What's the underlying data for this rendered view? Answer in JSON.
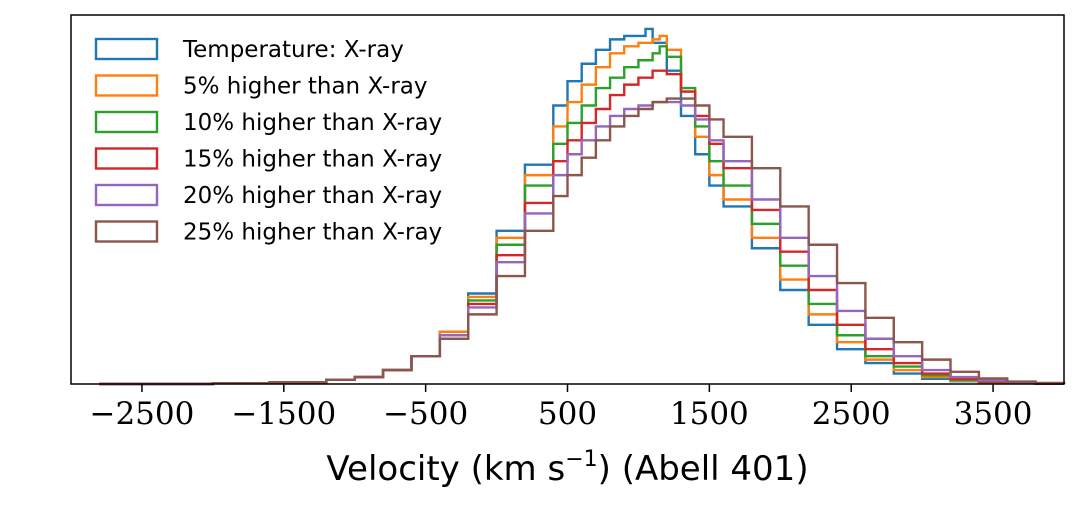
{
  "chart_data": {
    "type": "histogram",
    "xlabel": "Velocity (km s",
    "xlabel_superscript": "−1",
    "xlabel_tail": ") (Abell 401)",
    "ylabel": "",
    "xlim": [
      -3000,
      4000
    ],
    "ylim": [
      0,
      1.06
    ],
    "y_axis_visible": false,
    "grid": false,
    "legend_position": "upper-left",
    "x_ticks": [
      -2500,
      -1500,
      -500,
      500,
      1500,
      2500,
      3500
    ],
    "x_tick_labels": [
      "−2500",
      "−1500",
      "−500",
      "500",
      "1500",
      "2500",
      "3500"
    ],
    "series": [
      {
        "name": "Temperature: X-ray",
        "color": "#1f77b4",
        "x": [
          -2800,
          -2400,
          -2000,
          -1600,
          -1200,
          -1000,
          -800,
          -600,
          -400,
          -200,
          0,
          200,
          400,
          500,
          600,
          700,
          800,
          900,
          1000,
          1050,
          1100,
          1200,
          1300,
          1400,
          1500,
          1600,
          1800,
          2000,
          2200,
          2400,
          2600,
          2800,
          3000,
          3200,
          3400,
          3600,
          3800,
          4000
        ],
        "y": [
          0,
          0,
          0.002,
          0.005,
          0.012,
          0.02,
          0.04,
          0.08,
          0.15,
          0.26,
          0.44,
          0.63,
          0.8,
          0.87,
          0.92,
          0.96,
          0.99,
          1.0,
          1.0,
          1.02,
          0.98,
          0.9,
          0.77,
          0.66,
          0.57,
          0.51,
          0.39,
          0.27,
          0.17,
          0.1,
          0.06,
          0.03,
          0.015,
          0.008,
          0.004,
          0.002,
          0.001,
          0
        ]
      },
      {
        "name": "5% higher than X-ray",
        "color": "#ff7f0e",
        "x": [
          -2800,
          -2400,
          -2000,
          -1600,
          -1200,
          -1000,
          -800,
          -600,
          -400,
          -200,
          0,
          200,
          400,
          500,
          600,
          700,
          800,
          900,
          1000,
          1100,
          1150,
          1200,
          1300,
          1400,
          1500,
          1600,
          1800,
          2000,
          2200,
          2400,
          2600,
          2800,
          3000,
          3200,
          3400,
          3600,
          3800,
          4000
        ],
        "y": [
          0,
          0,
          0.002,
          0.005,
          0.012,
          0.02,
          0.04,
          0.08,
          0.15,
          0.25,
          0.42,
          0.6,
          0.74,
          0.81,
          0.86,
          0.91,
          0.95,
          0.97,
          0.98,
          0.99,
          1.0,
          0.96,
          0.84,
          0.71,
          0.6,
          0.53,
          0.42,
          0.3,
          0.2,
          0.12,
          0.07,
          0.04,
          0.02,
          0.01,
          0.005,
          0.002,
          0.001,
          0
        ]
      },
      {
        "name": "10% higher than X-ray",
        "color": "#2ca02c",
        "x": [
          -2800,
          -2400,
          -2000,
          -1600,
          -1200,
          -1000,
          -800,
          -600,
          -400,
          -200,
          0,
          200,
          400,
          500,
          600,
          700,
          800,
          900,
          1000,
          1100,
          1150,
          1200,
          1300,
          1400,
          1500,
          1600,
          1800,
          2000,
          2200,
          2400,
          2600,
          2800,
          3000,
          3200,
          3400,
          3600,
          3800,
          4000
        ],
        "y": [
          0,
          0,
          0.002,
          0.005,
          0.012,
          0.02,
          0.04,
          0.08,
          0.14,
          0.24,
          0.4,
          0.57,
          0.69,
          0.75,
          0.8,
          0.85,
          0.88,
          0.91,
          0.93,
          0.95,
          0.97,
          0.94,
          0.85,
          0.74,
          0.64,
          0.57,
          0.46,
          0.34,
          0.23,
          0.14,
          0.08,
          0.05,
          0.025,
          0.012,
          0.006,
          0.003,
          0.001,
          0
        ]
      },
      {
        "name": "15% higher than X-ray",
        "color": "#d62728",
        "x": [
          -2800,
          -2400,
          -2000,
          -1600,
          -1200,
          -1000,
          -800,
          -600,
          -400,
          -200,
          0,
          200,
          400,
          500,
          600,
          700,
          800,
          900,
          1000,
          1100,
          1200,
          1300,
          1400,
          1500,
          1600,
          1800,
          2000,
          2200,
          2400,
          2600,
          2800,
          3000,
          3200,
          3400,
          3600,
          3800,
          4000
        ],
        "y": [
          0,
          0,
          0.002,
          0.005,
          0.012,
          0.02,
          0.04,
          0.08,
          0.14,
          0.23,
          0.37,
          0.52,
          0.64,
          0.7,
          0.75,
          0.79,
          0.83,
          0.86,
          0.88,
          0.9,
          0.89,
          0.84,
          0.77,
          0.69,
          0.62,
          0.5,
          0.38,
          0.27,
          0.17,
          0.1,
          0.06,
          0.03,
          0.015,
          0.007,
          0.003,
          0.001,
          0
        ]
      },
      {
        "name": "20% higher than X-ray",
        "color": "#9467bd",
        "x": [
          -2800,
          -2400,
          -2000,
          -1600,
          -1200,
          -1000,
          -800,
          -600,
          -400,
          -200,
          0,
          200,
          400,
          500,
          600,
          700,
          800,
          900,
          1000,
          1100,
          1200,
          1300,
          1400,
          1500,
          1600,
          1800,
          2000,
          2200,
          2400,
          2600,
          2800,
          3000,
          3200,
          3400,
          3600,
          3800,
          4000
        ],
        "y": [
          0,
          0,
          0.002,
          0.005,
          0.012,
          0.02,
          0.04,
          0.08,
          0.14,
          0.22,
          0.35,
          0.49,
          0.6,
          0.66,
          0.7,
          0.74,
          0.77,
          0.79,
          0.8,
          0.81,
          0.81,
          0.8,
          0.76,
          0.7,
          0.64,
          0.53,
          0.42,
          0.31,
          0.21,
          0.13,
          0.08,
          0.04,
          0.02,
          0.01,
          0.004,
          0.002,
          0
        ]
      },
      {
        "name": "25% higher than X-ray",
        "color": "#8c564b",
        "x": [
          -2800,
          -2400,
          -2000,
          -1600,
          -1200,
          -1000,
          -800,
          -600,
          -400,
          -200,
          0,
          200,
          400,
          500,
          600,
          700,
          800,
          900,
          1000,
          1100,
          1200,
          1300,
          1400,
          1500,
          1600,
          1800,
          2000,
          2200,
          2400,
          2600,
          2800,
          3000,
          3200,
          3400,
          3600,
          3800,
          4000
        ],
        "y": [
          0,
          0,
          0.002,
          0.005,
          0.012,
          0.02,
          0.04,
          0.08,
          0.13,
          0.2,
          0.31,
          0.44,
          0.54,
          0.6,
          0.65,
          0.7,
          0.74,
          0.77,
          0.79,
          0.81,
          0.82,
          0.82,
          0.8,
          0.76,
          0.71,
          0.62,
          0.51,
          0.4,
          0.29,
          0.19,
          0.12,
          0.07,
          0.035,
          0.016,
          0.007,
          0.003,
          0
        ]
      }
    ]
  }
}
